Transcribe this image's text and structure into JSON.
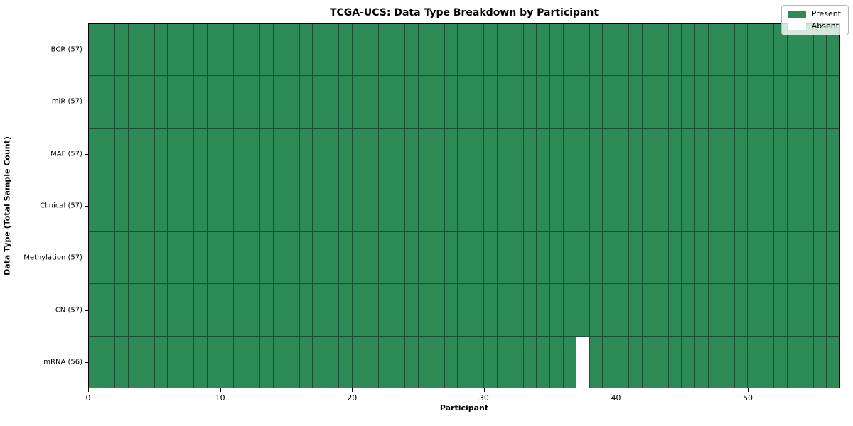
{
  "chart_data": {
    "type": "heatmap",
    "title": "TCGA-UCS: Data Type Breakdown by Participant",
    "xlabel": "Participant",
    "ylabel": "Data Type (Total Sample Count)",
    "n_participants": 57,
    "x_ticks": [
      0,
      10,
      20,
      30,
      40,
      50
    ],
    "x_range": [
      0,
      57
    ],
    "rows": [
      {
        "label": "BCR (57)",
        "data_type": "BCR",
        "total": 57,
        "absent_participants": []
      },
      {
        "label": "miR (57)",
        "data_type": "miR",
        "total": 57,
        "absent_participants": []
      },
      {
        "label": "MAF (57)",
        "data_type": "MAF",
        "total": 57,
        "absent_participants": []
      },
      {
        "label": "Clinical (57)",
        "data_type": "Clinical",
        "total": 57,
        "absent_participants": []
      },
      {
        "label": "Methylation (57)",
        "data_type": "Methylation",
        "total": 57,
        "absent_participants": []
      },
      {
        "label": "CN (57)",
        "data_type": "CN",
        "total": 57,
        "absent_participants": []
      },
      {
        "label": "mRNA (56)",
        "data_type": "mRNA",
        "total": 56,
        "absent_participants": [
          37
        ]
      }
    ],
    "legend": [
      {
        "label": "Present",
        "color": "#2e8b57"
      },
      {
        "label": "Absent",
        "color": "#ffffff"
      }
    ],
    "colors": {
      "present": "#2e8b57",
      "absent": "#ffffff",
      "grid_line": "#1c4f33",
      "plot_border": "#000000"
    },
    "grid": true,
    "legend_position": "upper right"
  }
}
